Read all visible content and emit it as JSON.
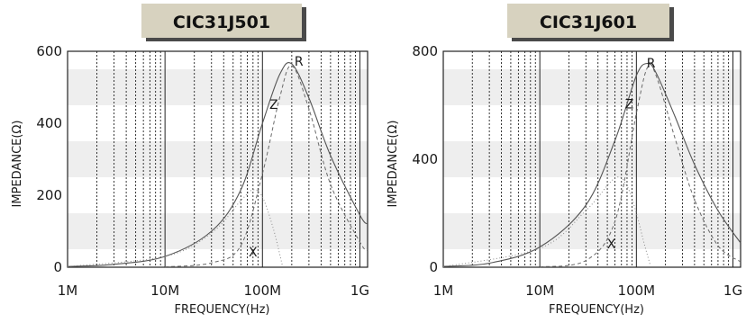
{
  "chart_data": [
    {
      "type": "line",
      "title": "CIC31J501",
      "xlabel": "FREQUENCY(Hz)",
      "ylabel": "IMPEDANCE(Ω)",
      "x_scale": "log",
      "xlim": [
        "1M",
        "1.2G"
      ],
      "ylim": [
        0,
        600
      ],
      "x_tick_labels": [
        "1M",
        "10M",
        "100M",
        "1G"
      ],
      "y_tick_labels": [
        "0",
        "200",
        "400",
        "600"
      ],
      "grid": true,
      "series": [
        {
          "name": "Z",
          "x": [
            "1M",
            "3M",
            "10M",
            "30M",
            "60M",
            "100M",
            "150M",
            "200M",
            "300M",
            "500M",
            "1G",
            "1.2G"
          ],
          "values": [
            2,
            8,
            30,
            100,
            215,
            400,
            535,
            565,
            470,
            310,
            145,
            120
          ]
        },
        {
          "name": "R",
          "x": [
            "10M",
            "30M",
            "60M",
            "100M",
            "150M",
            "200M",
            "300M",
            "500M",
            "1G",
            "1.2G"
          ],
          "values": [
            1,
            12,
            60,
            260,
            470,
            560,
            440,
            230,
            70,
            45
          ]
        },
        {
          "name": "X",
          "x": [
            "1M",
            "10M",
            "30M",
            "60M",
            "80M",
            "100M",
            "130M",
            "160M"
          ],
          "values": [
            2,
            30,
            95,
            185,
            215,
            195,
            105,
            5
          ]
        }
      ]
    },
    {
      "type": "line",
      "title": "CIC31J601",
      "xlabel": "FREQUENCY(Hz)",
      "ylabel": "IMPEDANCE(Ω)",
      "x_scale": "log",
      "xlim": [
        "1M",
        "1.2G"
      ],
      "ylim": [
        0,
        800
      ],
      "x_tick_labels": [
        "1M",
        "10M",
        "100M",
        "1G"
      ],
      "y_tick_labels": [
        "0",
        "400",
        "800"
      ],
      "grid": true,
      "series": [
        {
          "name": "Z",
          "x": [
            "1M",
            "3M",
            "10M",
            "30M",
            "60M",
            "100M",
            "130M",
            "160M",
            "250M",
            "400M",
            "700M",
            "1.2G"
          ],
          "values": [
            3,
            15,
            75,
            230,
            470,
            710,
            755,
            720,
            560,
            380,
            210,
            90
          ]
        },
        {
          "name": "R",
          "x": [
            "10M",
            "30M",
            "60M",
            "100M",
            "130M",
            "160M",
            "250M",
            "400M",
            "700M",
            "1.2G"
          ],
          "values": [
            1,
            25,
            170,
            570,
            740,
            710,
            480,
            250,
            80,
            20
          ]
        },
        {
          "name": "X",
          "x": [
            "1M",
            "10M",
            "30M",
            "60M",
            "80M",
            "100M",
            "120M",
            "140M"
          ],
          "values": [
            2,
            70,
            210,
            330,
            300,
            200,
            90,
            5
          ]
        }
      ]
    }
  ]
}
